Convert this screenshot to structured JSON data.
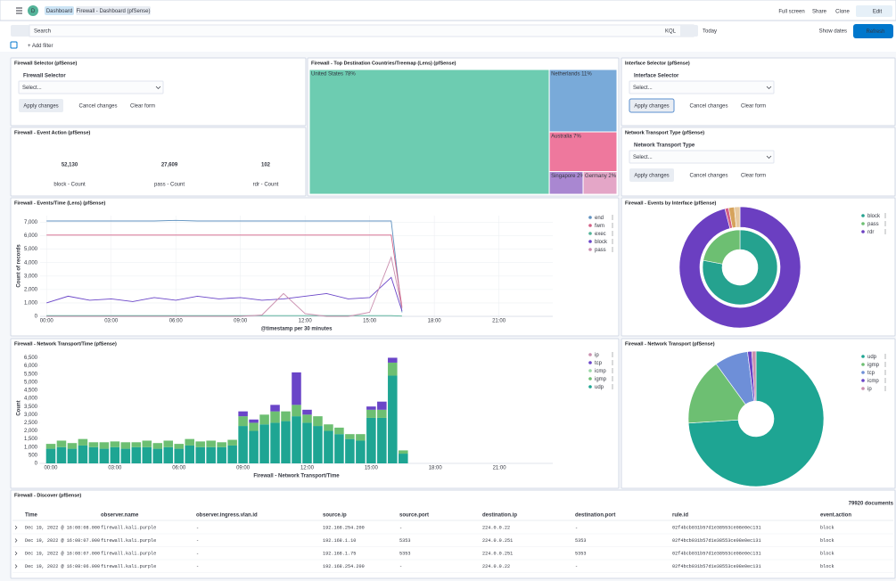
{
  "header": {
    "avatar": "D",
    "breadcrumbs": [
      "Dashboard",
      "Firewall - Dashboard (pfSense)"
    ],
    "actions": [
      "Full screen",
      "Share",
      "Clone"
    ],
    "edit": "Edit"
  },
  "query": {
    "placeholder": "Search",
    "language": "KQL",
    "date": "Today",
    "show_dates": "Show dates",
    "refresh": "Refresh",
    "add_filter": "+ Add filter"
  },
  "controls": [
    {
      "title": "Firewall Selector (pfSense)",
      "label": "Firewall Selector",
      "placeholder": "Select...",
      "buttons": [
        "Apply changes",
        "Cancel changes",
        "Clear form"
      ]
    },
    {
      "title": "Interface Selector (pfSense)",
      "label": "Interface Selector",
      "placeholder": "Select...",
      "buttons": [
        "Apply changes",
        "Cancel changes",
        "Clear form"
      ]
    },
    {
      "title": "Network Transport Type (pfSense)",
      "label": "Network Transport Type",
      "placeholder": "Select...",
      "buttons": [
        "Apply changes",
        "Cancel changes",
        "Clear form"
      ]
    }
  ],
  "treemap": {
    "title": "Firewall - Top Destination Countries/Treemap (Lens) (pfSense)",
    "items": [
      {
        "label": "United States 78%",
        "value": 78,
        "color": "#6dccb1"
      },
      {
        "label": "Netherlands 11%",
        "value": 11,
        "color": "#79aad9"
      },
      {
        "label": "Australia 7%",
        "value": 7,
        "color": "#ee789d"
      },
      {
        "label": "Singapore 2%",
        "value": 2,
        "color": "#a987d1"
      },
      {
        "label": "Germany 2%",
        "value": 2,
        "color": "#e4a6c7"
      }
    ]
  },
  "metrics": {
    "title": "Firewall - Event Action (pfSense)",
    "items": [
      {
        "value": "52,130",
        "caption": "block - Count"
      },
      {
        "value": "27,609",
        "caption": "pass - Count"
      },
      {
        "value": "102",
        "caption": "rdr - Count"
      }
    ]
  },
  "events_time": {
    "type": "line",
    "title": "Firewall - Events/Time (Lens) (pfSense)",
    "xlabel": "@timestamp per 30 minutes",
    "ylabel": "Count of records",
    "grid": true,
    "x": [
      0,
      1,
      2,
      3,
      4,
      5,
      6,
      7,
      8,
      9,
      10,
      11,
      12,
      13,
      14,
      15,
      16,
      16.5
    ],
    "xlim": [
      -0.3,
      23.5
    ],
    "xticks": [
      {
        "value": 0,
        "label": "00:00"
      },
      {
        "value": 3,
        "label": "03:00"
      },
      {
        "value": 6,
        "label": "06:00"
      },
      {
        "value": 9,
        "label": "09:00"
      },
      {
        "value": 12,
        "label": "12:00"
      },
      {
        "value": 15,
        "label": "15:00"
      },
      {
        "value": 18,
        "label": "18:00"
      },
      {
        "value": 21,
        "label": "21:00"
      }
    ],
    "ylim": [
      0,
      7500
    ],
    "yticks": [
      0,
      {
        "value": 1000,
        "label": "1,000"
      },
      {
        "value": 2000,
        "label": "2,000"
      },
      {
        "value": 3000,
        "label": "3,000"
      },
      {
        "value": 4000,
        "label": "4,000"
      },
      {
        "value": 5000,
        "label": "5,000"
      },
      {
        "value": 6000,
        "label": "6,000"
      },
      {
        "value": 7000,
        "label": "7,000"
      }
    ],
    "series": [
      {
        "name": "end",
        "color": "#6092c0",
        "values": [
          7100,
          7100,
          7100,
          7100,
          7100,
          7100,
          7150,
          7100,
          7100,
          7100,
          7100,
          7100,
          7100,
          7100,
          7100,
          7100,
          7100,
          300
        ]
      },
      {
        "name": "fwm",
        "color": "#d36086",
        "values": [
          6050,
          6050,
          6050,
          6050,
          6050,
          6050,
          6050,
          6050,
          6050,
          6050,
          6050,
          6050,
          6050,
          6050,
          6050,
          6050,
          6050,
          700
        ]
      },
      {
        "name": "exec",
        "color": "#54b399",
        "values": [
          50,
          50,
          50,
          50,
          50,
          50,
          50,
          50,
          50,
          50,
          50,
          50,
          50,
          50,
          50,
          50,
          50,
          20
        ]
      },
      {
        "name": "block",
        "color": "#6a45c8",
        "values": [
          1000,
          1500,
          1200,
          1300,
          1100,
          1400,
          1200,
          1500,
          1300,
          1400,
          1200,
          1300,
          1500,
          1700,
          1300,
          1400,
          2900,
          400
        ]
      },
      {
        "name": "pass",
        "color": "#ca8eae",
        "values": [
          0,
          0,
          0,
          0,
          0,
          0,
          0,
          0,
          0,
          0,
          100,
          1700,
          200,
          0,
          0,
          300,
          4400,
          600
        ]
      }
    ]
  },
  "events_interface": {
    "type": "donut",
    "title": "Firewall - Events by Interface (pfSense)",
    "legend": [
      {
        "name": "block",
        "color": "#25a28f"
      },
      {
        "name": "pass",
        "color": "#6dbf72"
      },
      {
        "name": "rdr",
        "color": "#6b3fc1"
      }
    ],
    "rings": [
      {
        "values": [
          78,
          22
        ],
        "colors": [
          "#25a28f",
          "#6dbf72"
        ]
      },
      {
        "values": [
          96,
          1,
          1.5,
          1.5
        ],
        "colors": [
          "#6b3fc1",
          "#d36086",
          "#d6a35c",
          "#e7c9a0"
        ]
      }
    ]
  },
  "transport_time": {
    "type": "bar",
    "title": "Firewall - Network Transport/Time (pfSense)",
    "xlabel": "Firewall - Network Transport/Time",
    "ylabel": "Count",
    "grid": false,
    "x": [
      0,
      0.5,
      1,
      1.5,
      2,
      2.5,
      3,
      3.5,
      4,
      4.5,
      5,
      5.5,
      6,
      6.5,
      7,
      7.5,
      8,
      8.5,
      9,
      9.5,
      10,
      10.5,
      11,
      11.5,
      12,
      12.5,
      13,
      13.5,
      14,
      14.5,
      15,
      15.5,
      16,
      16.5
    ],
    "xlim": [
      -0.5,
      23.5
    ],
    "xticks": [
      {
        "value": 0,
        "label": "00:00"
      },
      {
        "value": 3,
        "label": "03:00"
      },
      {
        "value": 6,
        "label": "06:00"
      },
      {
        "value": 9,
        "label": "09:00"
      },
      {
        "value": 12,
        "label": "12:00"
      },
      {
        "value": 15,
        "label": "15:00"
      },
      {
        "value": 18,
        "label": "18:00"
      },
      {
        "value": 21,
        "label": "21:00"
      }
    ],
    "ylim": [
      0,
      6800
    ],
    "yticks": [
      0,
      500,
      {
        "value": 1000,
        "label": "1,000"
      },
      {
        "value": 1500,
        "label": "1,500"
      },
      {
        "value": 2000,
        "label": "2,000"
      },
      {
        "value": 2500,
        "label": "2,500"
      },
      {
        "value": 3000,
        "label": "3,000"
      },
      {
        "value": 3500,
        "label": "3,500"
      },
      {
        "value": 4000,
        "label": "4,000"
      },
      {
        "value": 4500,
        "label": "4,500"
      },
      {
        "value": 5000,
        "label": "5,000"
      },
      {
        "value": 5500,
        "label": "5,500"
      },
      {
        "value": 6000,
        "label": "6,000"
      },
      {
        "value": 6500,
        "label": "6,500"
      }
    ],
    "series": [
      {
        "name": "ip",
        "color": "#ca8eae",
        "values": [
          0,
          0,
          0,
          0,
          0,
          0,
          0,
          0,
          0,
          0,
          0,
          0,
          0,
          0,
          0,
          0,
          0,
          0,
          0,
          0,
          0,
          0,
          0,
          0,
          0,
          0,
          0,
          0,
          0,
          0,
          0,
          0,
          0,
          0
        ]
      },
      {
        "name": "tcp",
        "color": "#6a45c8",
        "values": [
          0,
          0,
          0,
          0,
          0,
          0,
          0,
          0,
          0,
          0,
          0,
          0,
          0,
          0,
          0,
          0,
          0,
          0,
          300,
          200,
          0,
          400,
          0,
          2000,
          300,
          0,
          0,
          0,
          0,
          0,
          200,
          500,
          300,
          0
        ]
      },
      {
        "name": "icmp",
        "color": "#9ad8a6",
        "values": [
          0,
          0,
          0,
          0,
          0,
          0,
          0,
          0,
          0,
          0,
          0,
          0,
          0,
          0,
          0,
          0,
          0,
          0,
          0,
          0,
          0,
          0,
          0,
          0,
          0,
          0,
          0,
          0,
          0,
          0,
          0,
          0,
          0,
          0
        ]
      },
      {
        "name": "igmp",
        "color": "#6dbf72",
        "values": [
          300,
          400,
          350,
          400,
          300,
          400,
          350,
          400,
          300,
          400,
          350,
          400,
          300,
          400,
          350,
          400,
          300,
          350,
          600,
          500,
          600,
          700,
          600,
          700,
          500,
          600,
          400,
          400,
          300,
          400,
          500,
          500,
          800,
          200
        ]
      },
      {
        "name": "udp",
        "color": "#1ea593",
        "values": [
          900,
          1000,
          900,
          1100,
          1000,
          900,
          1000,
          900,
          1000,
          1000,
          900,
          1000,
          900,
          1100,
          1000,
          1000,
          1000,
          1100,
          2300,
          2000,
          2400,
          2500,
          2600,
          2900,
          2500,
          2300,
          2000,
          1800,
          1500,
          1400,
          2800,
          2800,
          5400,
          600
        ]
      }
    ]
  },
  "transport": {
    "type": "donut",
    "title": "Firewall - Network Transport (pfSense)",
    "legend": [
      {
        "name": "udp",
        "color": "#1ea593"
      },
      {
        "name": "igmp",
        "color": "#6dbf72"
      },
      {
        "name": "tcp",
        "color": "#6e8fd8"
      },
      {
        "name": "icmp",
        "color": "#6a45c8"
      },
      {
        "name": "ip",
        "color": "#ca8eae"
      }
    ],
    "rings": [
      {
        "values": [
          74,
          16,
          8,
          1,
          1
        ],
        "colors": [
          "#1ea593",
          "#6dbf72",
          "#6e8fd8",
          "#6a45c8",
          "#ca8eae"
        ]
      }
    ]
  },
  "discover": {
    "title": "Firewall - Discover (pfSense)",
    "count": "79920 documents",
    "columns": [
      "Time",
      "observer.name",
      "observer.ingress.vlan.id",
      "source.ip",
      "source.port",
      "destination.ip",
      "destination.port",
      "rule.id",
      "event.action"
    ],
    "rows": [
      [
        "Dec 19, 2022 @ 16:08:08.000",
        "firewall.kali.purple",
        "-",
        "192.168.254.200",
        "-",
        "224.0.0.22",
        "-",
        "02f4bcb031b57d1e38553ce08e0ec131",
        "block"
      ],
      [
        "Dec 19, 2022 @ 16:08:07.000",
        "firewall.kali.purple",
        "-",
        "192.168.1.10",
        "5353",
        "224.0.0.251",
        "5353",
        "02f4bcb031b57d1e38553ce08e0ec131",
        "block"
      ],
      [
        "Dec 19, 2022 @ 16:08:07.000",
        "firewall.kali.purple",
        "-",
        "192.168.1.75",
        "5353",
        "224.0.0.251",
        "5353",
        "02f4bcb031b57d1e38553ce08e0ec131",
        "block"
      ],
      [
        "Dec 19, 2022 @ 16:08:06.000",
        "firewall.kali.purple",
        "-",
        "192.168.254.200",
        "-",
        "224.0.0.22",
        "-",
        "02f4bcb031b57d1e38553ce08e0ec131",
        "block"
      ]
    ]
  }
}
